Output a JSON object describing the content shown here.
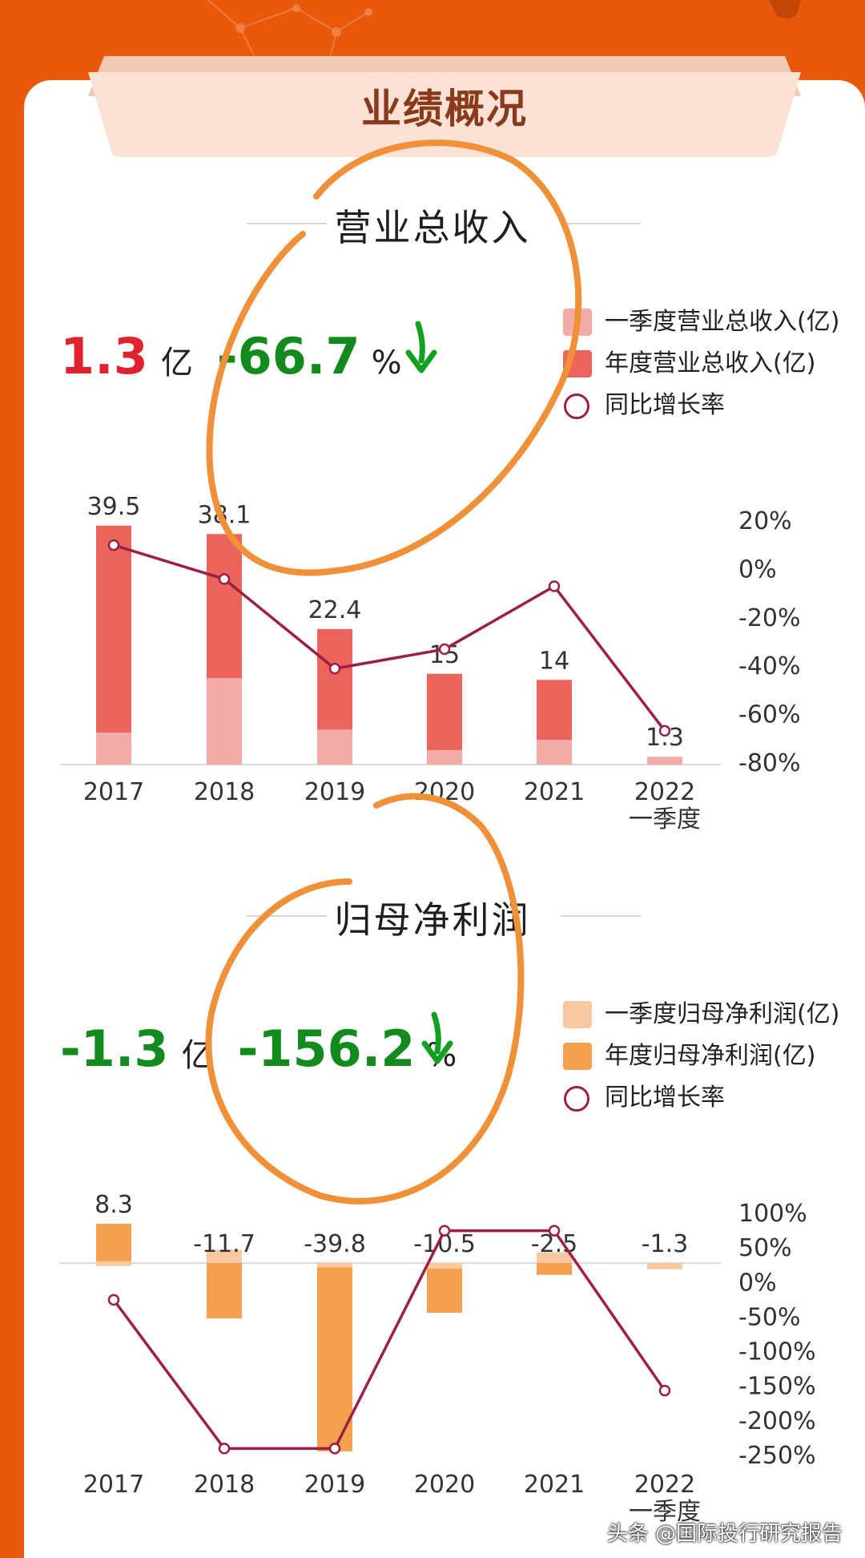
{
  "page": {
    "banner_title": "业绩概况",
    "watermark": "头条 @国际投行研究报告",
    "colors": {
      "background": "#e8590c",
      "banner": "#fbe0d3",
      "revenue_q1": "#f4aaa6",
      "revenue_annual": "#ec645c",
      "profit_q1": "#f8c9a0",
      "profit_annual": "#f4a04e",
      "growth_line": "#9c1f45",
      "annotation_stroke": "#f0913a"
    }
  },
  "revenue": {
    "title": "营业总收入",
    "kpi_value": "1.3",
    "kpi_unit": "亿",
    "kpi_change": "-66.7",
    "kpi_pct_sign": "%",
    "kpi_arrow_icon": "arrow-down-icon",
    "legend": [
      "一季度营业总收入(亿)",
      "年度营业总收入(亿)",
      "同比增长率"
    ]
  },
  "profit": {
    "title": "归母净利润",
    "kpi_value": "-1.3",
    "kpi_unit": "亿",
    "kpi_change": "-156.2",
    "kpi_pct_sign": "%",
    "kpi_arrow_icon": "arrow-down-icon",
    "legend": [
      "一季度归母净利润(亿)",
      "年度归母净利润(亿)",
      "同比增长率"
    ]
  },
  "chart_data": [
    {
      "type": "bar",
      "categories": [
        "2017",
        "2018",
        "2019",
        "2020",
        "2021",
        "2022\n一季度"
      ],
      "series": [
        {
          "name": "一季度营业总收入(亿)",
          "values": [
            5.3,
            14.3,
            5.8,
            2.4,
            4.1,
            1.3
          ]
        },
        {
          "name": "年度营业总收入(亿)",
          "values": [
            39.5,
            38.1,
            22.4,
            15,
            14,
            null
          ]
        },
        {
          "name": "同比增长率",
          "values": [
            10,
            -4,
            -41,
            -33,
            -7,
            -66.7
          ]
        }
      ],
      "data_labels": [
        "39.5",
        "38.1",
        "22.4",
        "15",
        "14",
        "1.3"
      ],
      "y_right_ticks": [
        "20%",
        "0%",
        "-20%",
        "-40%",
        "-60%",
        "-80%"
      ],
      "y_right_range": [
        -80,
        20
      ],
      "grid": false,
      "legend_position": "top-right"
    },
    {
      "type": "bar",
      "categories": [
        "2017",
        "2018",
        "2019",
        "2020",
        "2021",
        "2022\n一季度"
      ],
      "series": [
        {
          "name": "一季度归母净利润(亿)",
          "values": [
            0.4,
            2.8,
            0.1,
            -1.2,
            2.3,
            -1.3
          ]
        },
        {
          "name": "年度归母净利润(亿)",
          "values": [
            8.3,
            -11.7,
            -39.8,
            -10.5,
            -2.5,
            null
          ]
        },
        {
          "name": "同比增长率",
          "values": [
            -25,
            -240,
            -240,
            75,
            75,
            -156.2
          ]
        }
      ],
      "data_labels": [
        "8.3",
        "-11.7",
        "-39.8",
        "-10.5",
        "-2.5",
        "-1.3"
      ],
      "y_right_ticks": [
        "100%",
        "50%",
        "0%",
        "-50%",
        "-100%",
        "-150%",
        "-200%",
        "-250%"
      ],
      "y_right_range": [
        -250,
        100
      ],
      "grid": false,
      "legend_position": "top-right"
    }
  ]
}
